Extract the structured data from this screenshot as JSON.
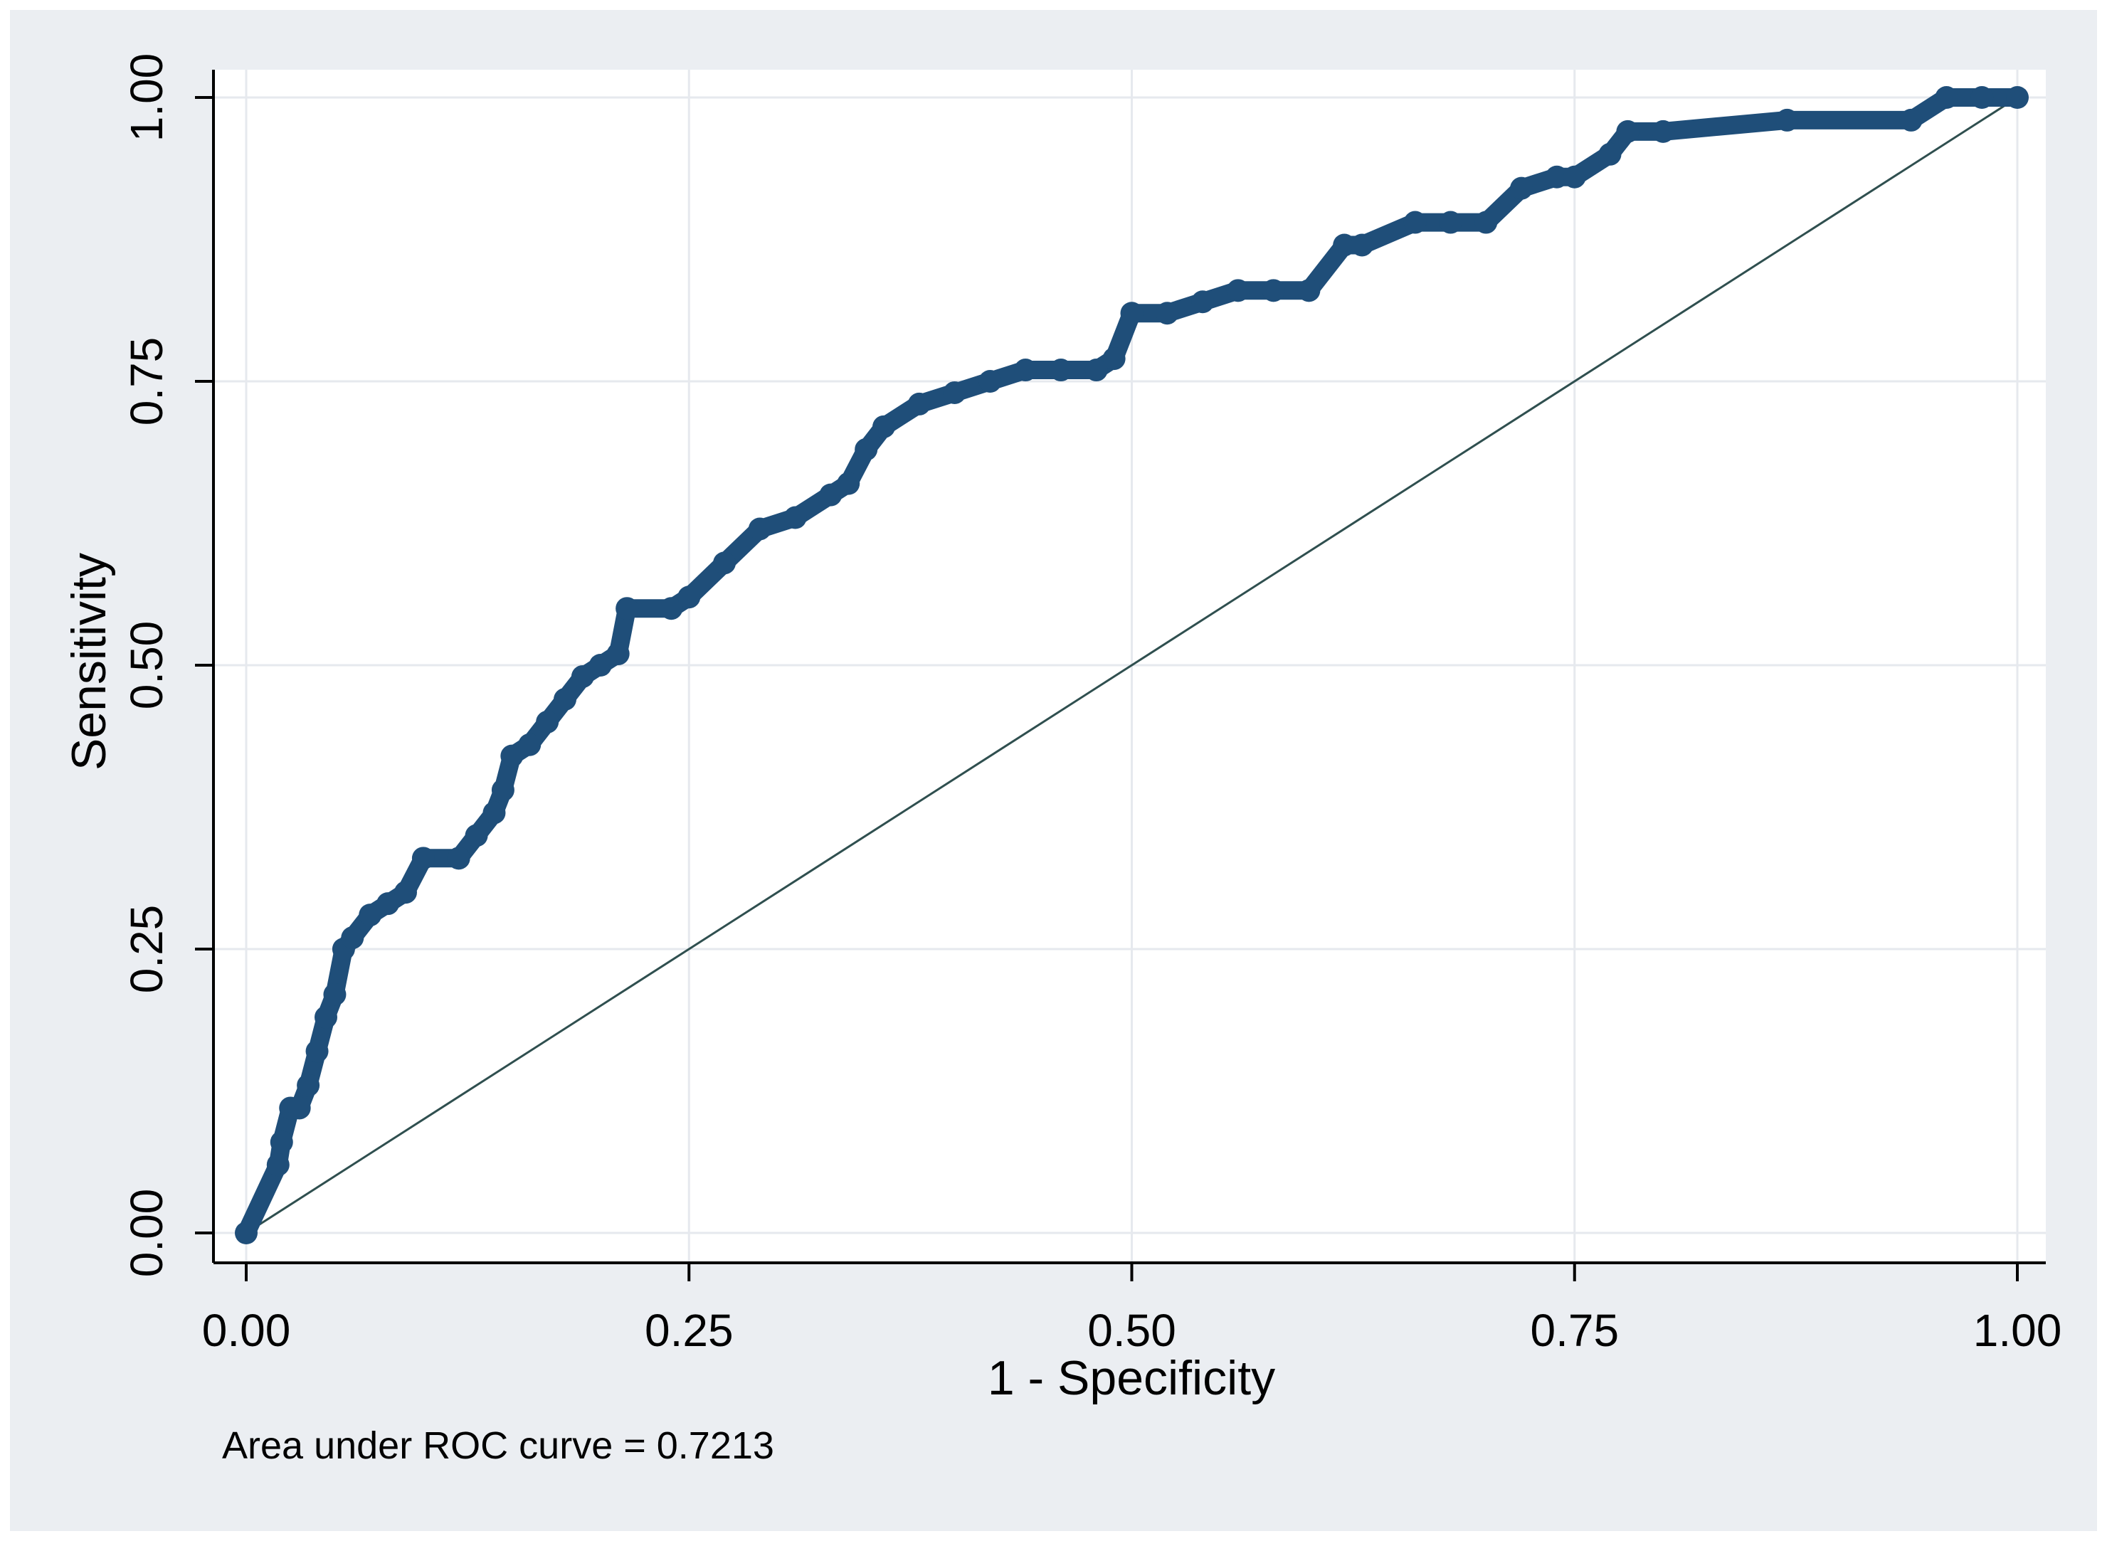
{
  "chart_data": {
    "type": "line",
    "xlabel": "1 - Specificity",
    "ylabel": "Sensitivity",
    "xlim": [
      0,
      1
    ],
    "ylim": [
      0,
      1
    ],
    "x_ticks": [
      "0.00",
      "0.25",
      "0.50",
      "0.75",
      "1.00"
    ],
    "y_ticks": [
      "0.00",
      "0.25",
      "0.50",
      "0.75",
      "1.00"
    ],
    "grid": true,
    "annotation": "Area under ROC curve = 0.7213",
    "colors": {
      "background": "#ebeef2",
      "plot": "#ffffff",
      "curve": "#1f4e79",
      "reference": "#2f4f4f",
      "grid": "#e6e9ee"
    },
    "series": [
      {
        "x": [
          0.0,
          0.018,
          0.02,
          0.025,
          0.03,
          0.035,
          0.04,
          0.045,
          0.05,
          0.055,
          0.06,
          0.07,
          0.08,
          0.09,
          0.1,
          0.12,
          0.13,
          0.14,
          0.145,
          0.15,
          0.16,
          0.17,
          0.18,
          0.19,
          0.2,
          0.21,
          0.215,
          0.24,
          0.25,
          0.27,
          0.29,
          0.31,
          0.33,
          0.34,
          0.35,
          0.36,
          0.38,
          0.4,
          0.42,
          0.44,
          0.46,
          0.48,
          0.49,
          0.5,
          0.52,
          0.54,
          0.56,
          0.58,
          0.6,
          0.62,
          0.63,
          0.66,
          0.68,
          0.7,
          0.72,
          0.74,
          0.75,
          0.77,
          0.78,
          0.8,
          0.87,
          0.94,
          0.96,
          0.98,
          1.0
        ],
        "y": [
          0.0,
          0.06,
          0.08,
          0.11,
          0.11,
          0.13,
          0.16,
          0.19,
          0.21,
          0.25,
          0.26,
          0.28,
          0.29,
          0.3,
          0.33,
          0.33,
          0.35,
          0.37,
          0.39,
          0.42,
          0.43,
          0.45,
          0.47,
          0.49,
          0.5,
          0.51,
          0.55,
          0.55,
          0.56,
          0.59,
          0.62,
          0.63,
          0.65,
          0.66,
          0.69,
          0.71,
          0.73,
          0.74,
          0.75,
          0.76,
          0.76,
          0.76,
          0.77,
          0.81,
          0.81,
          0.82,
          0.83,
          0.83,
          0.83,
          0.87,
          0.87,
          0.89,
          0.89,
          0.89,
          0.92,
          0.93,
          0.93,
          0.95,
          0.97,
          0.97,
          0.98,
          0.98,
          1.0,
          1.0,
          1.0
        ]
      },
      {
        "x": [
          0,
          1
        ],
        "y": [
          0,
          1
        ]
      }
    ]
  }
}
